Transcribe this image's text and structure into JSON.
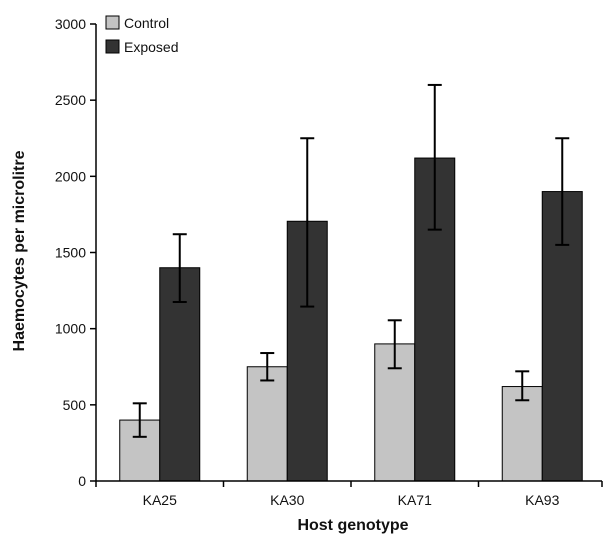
{
  "chart_data": {
    "type": "bar",
    "title": "",
    "xlabel": "Host genotype",
    "ylabel": "Haemocytes per microlitre",
    "ylim": [
      0,
      3000
    ],
    "yticks": [
      "0",
      "500",
      "1000",
      "1500",
      "2000",
      "2500",
      "3000"
    ],
    "categories": [
      "KA25",
      "KA30",
      "KA71",
      "KA93"
    ],
    "series": [
      {
        "name": "Control",
        "color": "#c4c4c4",
        "values": [
          400,
          750,
          900,
          620
        ],
        "err_low": [
          290,
          660,
          740,
          530
        ],
        "err_high": [
          510,
          840,
          1055,
          720
        ]
      },
      {
        "name": "Exposed",
        "color": "#333333",
        "values": [
          1400,
          1705,
          2120,
          1900
        ],
        "err_low": [
          1175,
          1145,
          1650,
          1550
        ],
        "err_high": [
          1620,
          2250,
          2600,
          2250
        ]
      }
    ],
    "legend_position": "top-left",
    "grid": false
  }
}
